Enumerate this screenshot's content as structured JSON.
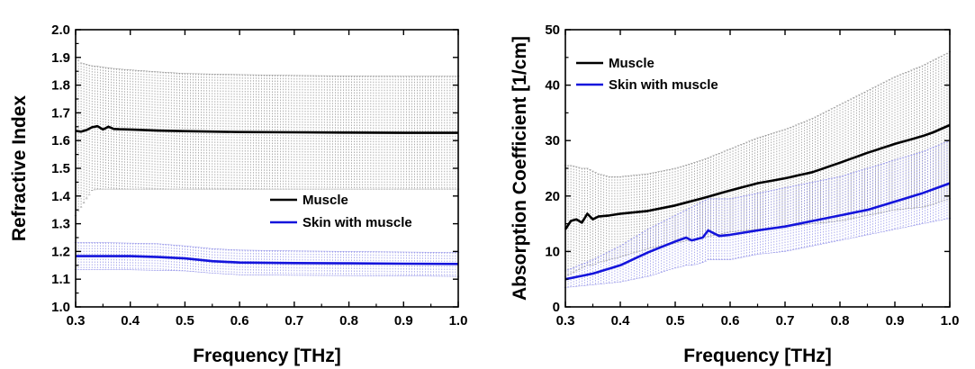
{
  "chart_data": [
    {
      "type": "line",
      "title": "",
      "xlabel": "Frequency [THz]",
      "ylabel": "Refractive Index",
      "xlim": [
        0.3,
        1.0
      ],
      "ylim": [
        1.0,
        2.0
      ],
      "xticks": [
        "0.3",
        "0.4",
        "0.5",
        "0.6",
        "0.7",
        "0.8",
        "0.9",
        "1.0"
      ],
      "yticks": [
        "1.0",
        "1.1",
        "1.2",
        "1.3",
        "1.4",
        "1.5",
        "1.6",
        "1.7",
        "1.8",
        "1.9",
        "2.0"
      ],
      "legend_position": "center-right",
      "grid": false,
      "error_bars": true,
      "series": [
        {
          "name": "Muscle",
          "color": "#000000",
          "x": [
            0.3,
            0.31,
            0.32,
            0.33,
            0.34,
            0.35,
            0.36,
            0.37,
            0.38,
            0.4,
            0.45,
            0.5,
            0.6,
            0.7,
            0.8,
            0.9,
            1.0
          ],
          "y": [
            1.635,
            1.632,
            1.638,
            1.648,
            1.652,
            1.64,
            1.65,
            1.642,
            1.641,
            1.64,
            1.636,
            1.634,
            1.631,
            1.63,
            1.629,
            1.628,
            1.628
          ],
          "err_upper": [
            1.9,
            1.88,
            1.875,
            1.87,
            1.868,
            1.865,
            1.862,
            1.86,
            1.858,
            1.855,
            1.848,
            1.842,
            1.838,
            1.835,
            1.833,
            1.832,
            1.832
          ],
          "err_lower": [
            1.33,
            1.36,
            1.39,
            1.42,
            1.425,
            1.425,
            1.425,
            1.425,
            1.425,
            1.425,
            1.425,
            1.425,
            1.425,
            1.425,
            1.425,
            1.425,
            1.425
          ]
        },
        {
          "name": "Skin with muscle",
          "color": "#1414dc",
          "x": [
            0.3,
            0.35,
            0.4,
            0.45,
            0.5,
            0.55,
            0.6,
            0.7,
            0.8,
            0.9,
            1.0
          ],
          "y": [
            1.183,
            1.183,
            1.183,
            1.18,
            1.175,
            1.165,
            1.16,
            1.158,
            1.157,
            1.156,
            1.155
          ],
          "err_upper": [
            1.232,
            1.232,
            1.23,
            1.228,
            1.22,
            1.21,
            1.205,
            1.202,
            1.2,
            1.198,
            1.196
          ],
          "err_lower": [
            1.134,
            1.134,
            1.134,
            1.132,
            1.13,
            1.122,
            1.116,
            1.114,
            1.113,
            1.112,
            1.11
          ]
        }
      ]
    },
    {
      "type": "line",
      "title": "",
      "xlabel": "Frequency [THz]",
      "ylabel": "Absorption Coefficient [1/cm]",
      "xlim": [
        0.3,
        1.0
      ],
      "ylim": [
        0,
        50
      ],
      "xticks": [
        "0.3",
        "0.4",
        "0.5",
        "0.6",
        "0.7",
        "0.8",
        "0.9",
        "1.0"
      ],
      "yticks": [
        "0",
        "10",
        "20",
        "30",
        "40",
        "50"
      ],
      "legend_position": "top-left",
      "grid": false,
      "error_bars": true,
      "series": [
        {
          "name": "Muscle",
          "color": "#000000",
          "x": [
            0.3,
            0.31,
            0.32,
            0.33,
            0.34,
            0.35,
            0.36,
            0.38,
            0.4,
            0.45,
            0.5,
            0.55,
            0.6,
            0.65,
            0.7,
            0.75,
            0.8,
            0.85,
            0.9,
            0.95,
            0.97,
            1.0
          ],
          "y": [
            14,
            15.5,
            15.8,
            15.2,
            16.8,
            15.8,
            16.3,
            16.5,
            16.8,
            17.3,
            18.3,
            19.6,
            21.0,
            22.3,
            23.2,
            24.3,
            26.0,
            27.8,
            29.4,
            30.8,
            31.5,
            32.8
          ],
          "err_upper": [
            25.5,
            25.5,
            25.3,
            25.0,
            25.0,
            24.5,
            24.0,
            23.5,
            23.5,
            24.0,
            25.0,
            26.5,
            28.5,
            30.5,
            32.0,
            34.0,
            36.5,
            39.0,
            41.5,
            43.5,
            44.5,
            46.0
          ],
          "err_lower": [
            5.5,
            6.0,
            6.5,
            7.0,
            7.5,
            7.5,
            8.0,
            8.5,
            9.0,
            10.5,
            11.5,
            12.5,
            13.5,
            14.0,
            14.5,
            15.0,
            15.5,
            16.5,
            17.5,
            18.0,
            18.5,
            19.5
          ]
        },
        {
          "name": "Skin with muscle",
          "color": "#1414dc",
          "x": [
            0.3,
            0.35,
            0.4,
            0.45,
            0.5,
            0.52,
            0.53,
            0.55,
            0.56,
            0.58,
            0.6,
            0.65,
            0.7,
            0.75,
            0.8,
            0.85,
            0.9,
            0.95,
            1.0
          ],
          "y": [
            5,
            6,
            7.5,
            9.8,
            11.8,
            12.5,
            12.0,
            12.5,
            13.8,
            12.8,
            13.0,
            13.8,
            14.5,
            15.5,
            16.5,
            17.5,
            19.0,
            20.5,
            22.3
          ],
          "err_upper": [
            6.5,
            8.5,
            11.0,
            14.0,
            16.5,
            17.5,
            18.0,
            19.0,
            19.5,
            19.5,
            19.5,
            20.5,
            21.5,
            22.5,
            23.5,
            25.0,
            26.5,
            28.0,
            30.0
          ],
          "err_lower": [
            3.5,
            4.0,
            4.5,
            5.5,
            7.0,
            7.5,
            7.5,
            8.0,
            8.5,
            8.5,
            8.5,
            9.5,
            10.0,
            11.0,
            12.0,
            13.0,
            14.0,
            15.0,
            16.0
          ]
        }
      ]
    }
  ]
}
